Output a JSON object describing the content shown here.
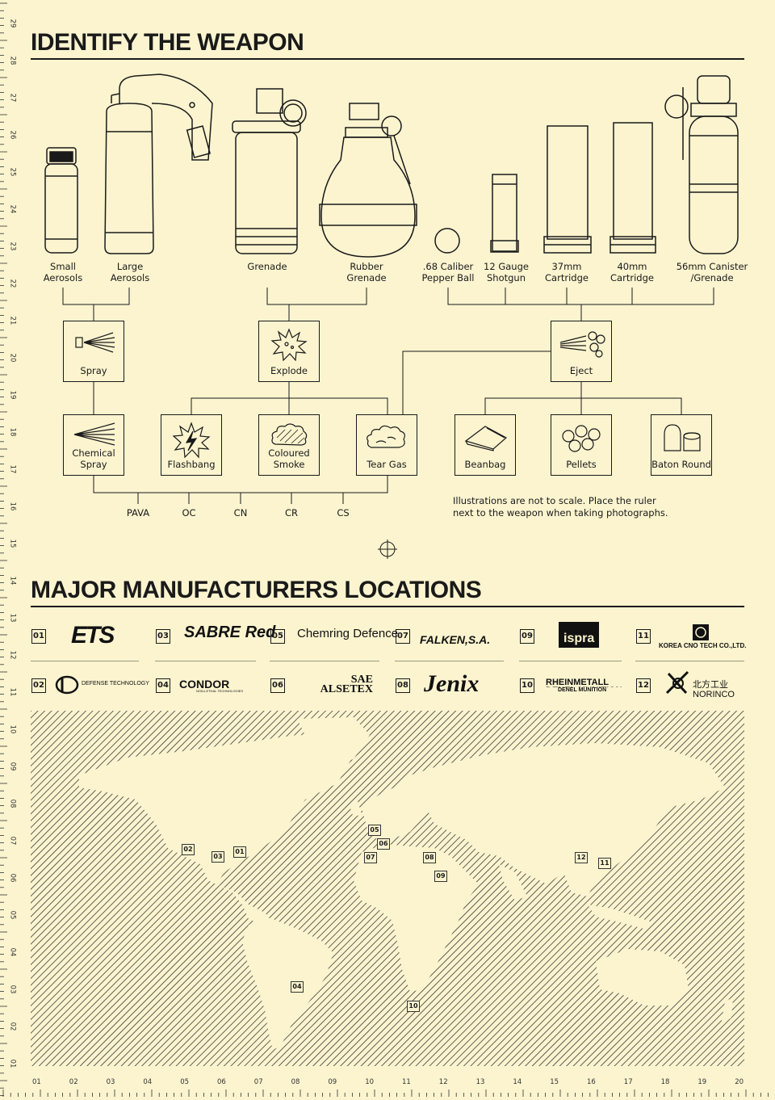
{
  "sections": {
    "identify_title": "IDENTIFY THE WEAPON",
    "manufacturers_title": "MAJOR MANUFACTURERS LOCATIONS"
  },
  "weapons": [
    {
      "label": "Small\nAerosols"
    },
    {
      "label": "Large\nAerosols"
    },
    {
      "label": "Grenade"
    },
    {
      "label": "Rubber\nGrenade"
    },
    {
      "label": ".68 Caliber\nPepper Ball"
    },
    {
      "label": "12 Gauge\nShotgun"
    },
    {
      "label": "37mm\nCartridge"
    },
    {
      "label": "40mm\nCartridge"
    },
    {
      "label": "56mm Canister\n/Grenade"
    }
  ],
  "methods": {
    "spray": "Spray",
    "explode": "Explode",
    "eject": "Eject"
  },
  "effects": {
    "chemical_spray": "Chemical\nSpray",
    "flashbang": "Flashbang",
    "coloured_smoke": "Coloured\nSmoke",
    "tear_gas": "Tear Gas",
    "beanbag": "Beanbag",
    "pellets": "Pellets",
    "baton_round": "Baton Round"
  },
  "agents": [
    "PAVA",
    "OC",
    "CN",
    "CR",
    "CS"
  ],
  "note": "Illustrations are not to scale. Place the ruler\nnext to the weapon when taking photographs.",
  "manufacturers": [
    {
      "num": "01",
      "name": "ETS"
    },
    {
      "num": "02",
      "name": "DEFENSE TECHNOLOGY"
    },
    {
      "num": "03",
      "name": "SABRE Red"
    },
    {
      "num": "04",
      "name": "CONDOR"
    },
    {
      "num": "05",
      "name": "Chemring Defence"
    },
    {
      "num": "06",
      "name": "SAE ALSETEX"
    },
    {
      "num": "07",
      "name": "FALKEN,S.A."
    },
    {
      "num": "08",
      "name": "Jenix"
    },
    {
      "num": "09",
      "name": "ispra"
    },
    {
      "num": "10",
      "name": "RHEINMETALL DENEL MUNITION"
    },
    {
      "num": "11",
      "name": "KOREA CNO TECH CO.,LTD."
    },
    {
      "num": "12",
      "name": "北方工业 NORINCO"
    }
  ],
  "logo_text": {
    "condor_sub": "NON-LETHAL TECHNOLOGIES",
    "chemring_sub": "Defence",
    "rhein_sub": "DENEL MUNITION"
  },
  "map_pins": [
    "01",
    "02",
    "03",
    "04",
    "05",
    "06",
    "07",
    "08",
    "09",
    "10",
    "11",
    "12"
  ],
  "ruler_bottom": [
    "01",
    "02",
    "03",
    "04",
    "05",
    "06",
    "07",
    "08",
    "09",
    "10",
    "11",
    "12",
    "13",
    "14",
    "15",
    "16",
    "17",
    "18",
    "19",
    "20"
  ],
  "ruler_left": [
    "29",
    "28",
    "27",
    "26",
    "25",
    "24",
    "23",
    "22",
    "21",
    "20",
    "19",
    "18",
    "17",
    "16",
    "15",
    "14",
    "13",
    "12",
    "11",
    "10",
    "09",
    "08",
    "07",
    "06",
    "05",
    "04",
    "03",
    "02",
    "01"
  ],
  "colors": {
    "background": "#fbf4cf",
    "ink": "#1a1a1a"
  }
}
